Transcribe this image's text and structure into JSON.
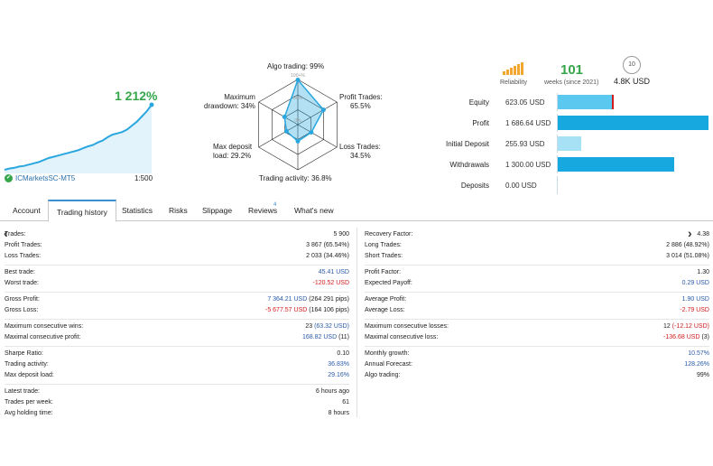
{
  "growth": {
    "value": "1 212%",
    "broker": "ICMarketsSC-MT5",
    "leverage": "1:500",
    "curve": [
      0,
      0.02,
      0.03,
      0.05,
      0.06,
      0.08,
      0.1,
      0.12,
      0.15,
      0.18,
      0.2,
      0.22,
      0.24,
      0.26,
      0.28,
      0.3,
      0.33,
      0.36,
      0.38,
      0.42,
      0.45,
      0.5,
      0.54,
      0.56,
      0.58,
      0.62,
      0.68,
      0.74,
      0.82,
      0.9,
      1.0
    ]
  },
  "radar": {
    "algo_trading": "Algo trading: 99%",
    "profit_trades": "Profit Trades:",
    "profit_trades_val": "65.5%",
    "loss_trades": "Loss Trades:",
    "loss_trades_val": "34.5%",
    "trading_activity": "Trading activity: 36.8%",
    "max_deposit_load": "Max deposit",
    "max_deposit_load2": "load: 29.2%",
    "max_drawdown": "Maximum",
    "max_drawdown2": "drawdown: 34%",
    "ring_100": "100+%",
    "ring_50": "50%",
    "ring_0": "0%",
    "values": [
      0.99,
      0.655,
      0.345,
      0.368,
      0.292,
      0.34
    ]
  },
  "summary": {
    "reliability_label": "Reliability",
    "weeks": "101",
    "weeks_label": "weeks (since 2021)",
    "subscribers_icon": "10",
    "subscribers_value": "4.8K USD"
  },
  "balance": [
    {
      "label": "Equity",
      "value": "623.05 USD",
      "fill": 0.36,
      "color": "#5bc8f0",
      "marker": true
    },
    {
      "label": "Profit",
      "value": "1 686.64 USD",
      "fill": 0.97,
      "color": "#18a8e0"
    },
    {
      "label": "Initial Deposit",
      "value": "255.93 USD",
      "fill": 0.15,
      "color": "#a6e1f6"
    },
    {
      "label": "Withdrawals",
      "value": "1 300.00 USD",
      "fill": 0.75,
      "color": "#18a8e0"
    },
    {
      "label": "Deposits",
      "value": "0.00 USD",
      "fill": 0,
      "color": "#18a8e0"
    }
  ],
  "tabs": {
    "account": "Account",
    "trading_history": "Trading history",
    "statistics": "Statistics",
    "risks": "Risks",
    "slippage": "Slippage",
    "reviews": "Reviews",
    "reviews_count": "4",
    "whats_new": "What's new"
  },
  "left_stats": [
    {
      "k": "Trades:",
      "v": "5 900"
    },
    {
      "k": "Profit Trades:",
      "v": "3 867 (65.54%)"
    },
    {
      "k": "Loss Trades:",
      "v": "2 033 (34.46%)"
    },
    {
      "k": "Best trade:",
      "v": "45.41 USD"
    },
    {
      "k": "Worst trade:",
      "v": "-120.52 USD"
    },
    {
      "k": "Gross Profit:",
      "v": "7 364.21 USD",
      "v2": "(264 291 pips)"
    },
    {
      "k": "Gross Loss:",
      "v": "-5 677.57 USD",
      "v2": "(164 106 pips)"
    },
    {
      "k": "Maximum consecutive wins:",
      "v": "23",
      "v2": "(63.32 USD)"
    },
    {
      "k": "Maximal consecutive profit:",
      "v": "168.82 USD",
      "v2": "(11)"
    },
    {
      "k": "Sharpe Ratio:",
      "v": "0.10"
    },
    {
      "k": "Trading activity:",
      "v": "36.83%"
    },
    {
      "k": "Max deposit load:",
      "v": "29.16%"
    },
    {
      "k": "Latest trade:",
      "v": "6 hours ago"
    },
    {
      "k": "Trades per week:",
      "v": "61"
    },
    {
      "k": "Avg holding time:",
      "v": "8 hours"
    }
  ],
  "right_stats": [
    {
      "k": "Recovery Factor:",
      "v": "4.38"
    },
    {
      "k": "Long Trades:",
      "v": "2 886 (48.92%)"
    },
    {
      "k": "Short Trades:",
      "v": "3 014 (51.08%)"
    },
    {
      "k": "Profit Factor:",
      "v": "1.30"
    },
    {
      "k": "Expected Payoff:",
      "v": "0.29 USD"
    },
    {
      "k": "Average Profit:",
      "v": "1.90 USD"
    },
    {
      "k": "Average Loss:",
      "v": "-2.79 USD"
    },
    {
      "k": "Maximum consecutive losses:",
      "v": "12",
      "v2": "(-12.12 USD)"
    },
    {
      "k": "Maximal consecutive loss:",
      "v": "-136.68 USD",
      "v2": "(3)"
    },
    {
      "k": "Monthly growth:",
      "v": "10.57%"
    },
    {
      "k": "Annual Forecast:",
      "v": "128.26%"
    },
    {
      "k": "Algo trading:",
      "v": "99%"
    }
  ],
  "colors": {
    "accent": "#18a8e0",
    "positive": "#35a64a",
    "negative": "#d21c1c",
    "value_blue": "#2a5aa8"
  }
}
